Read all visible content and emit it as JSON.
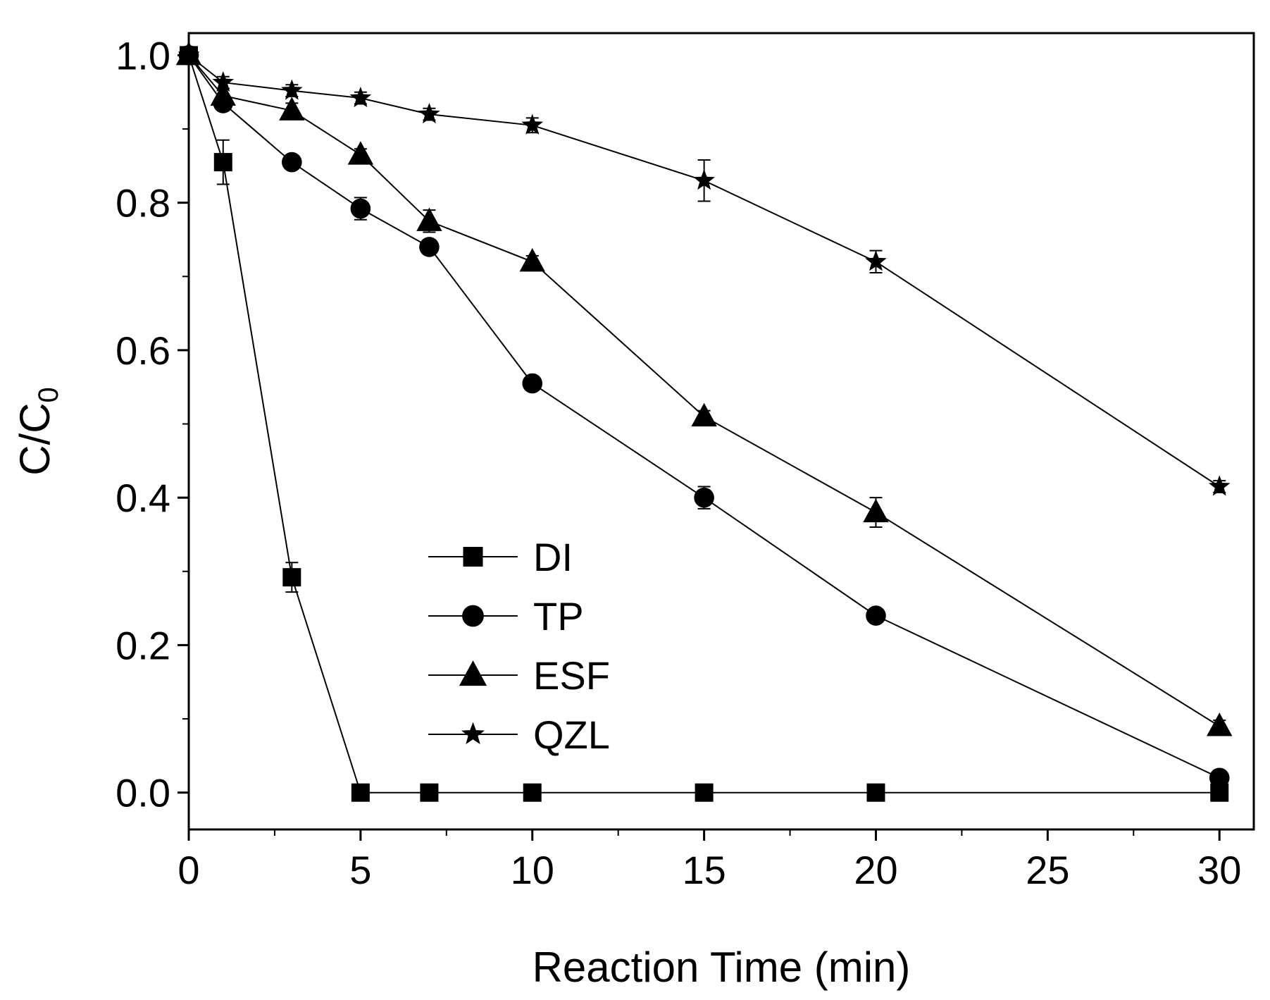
{
  "chart_data": {
    "type": "line",
    "title": "",
    "xlabel": "Reaction Time (min)",
    "ylabel": "C/C",
    "ylabel_subscript": "0",
    "xlim": [
      0,
      31
    ],
    "ylim": [
      -0.05,
      1.03
    ],
    "xticks": [
      0,
      5,
      10,
      15,
      20,
      25,
      30
    ],
    "xtick_labels": [
      "0",
      "5",
      "10",
      "15",
      "20",
      "25",
      "30"
    ],
    "yticks": [
      0.0,
      0.2,
      0.4,
      0.6,
      0.8,
      1.0
    ],
    "ytick_labels": [
      "0.0",
      "0.2",
      "0.4",
      "0.6",
      "0.8",
      "1.0"
    ],
    "grid": false,
    "legend_position": "lower-left",
    "series": [
      {
        "name": "DI",
        "marker": "square",
        "x": [
          0,
          1,
          3,
          5,
          7,
          10,
          15,
          20,
          30
        ],
        "values": [
          1.0,
          0.855,
          0.292,
          0.0,
          0.0,
          0.0,
          0.0,
          0.0,
          0.0
        ],
        "errors": [
          0.01,
          0.03,
          0.02,
          0.0,
          0.0,
          0.0,
          0.0,
          0.0,
          0.0
        ]
      },
      {
        "name": "TP",
        "marker": "circle",
        "x": [
          0,
          1,
          3,
          5,
          7,
          10,
          15,
          20,
          30
        ],
        "values": [
          1.0,
          0.935,
          0.855,
          0.792,
          0.74,
          0.555,
          0.4,
          0.24,
          0.02
        ],
        "errors": [
          0.01,
          0.01,
          0.008,
          0.015,
          0.01,
          0.008,
          0.015,
          0.008,
          0.008
        ]
      },
      {
        "name": "ESF",
        "marker": "triangle",
        "x": [
          0,
          1,
          3,
          5,
          7,
          10,
          15,
          20,
          30
        ],
        "values": [
          1.0,
          0.945,
          0.925,
          0.865,
          0.775,
          0.72,
          0.51,
          0.38,
          0.09
        ],
        "errors": [
          0.01,
          0.01,
          0.01,
          0.008,
          0.015,
          0.008,
          0.008,
          0.02,
          0.008
        ]
      },
      {
        "name": "QZL",
        "marker": "star",
        "x": [
          0,
          1,
          3,
          5,
          7,
          10,
          15,
          20,
          30
        ],
        "values": [
          1.0,
          0.963,
          0.952,
          0.942,
          0.92,
          0.905,
          0.83,
          0.72,
          0.415
        ],
        "errors": [
          0.008,
          0.008,
          0.008,
          0.008,
          0.008,
          0.01,
          0.028,
          0.015,
          0.008
        ]
      }
    ]
  }
}
